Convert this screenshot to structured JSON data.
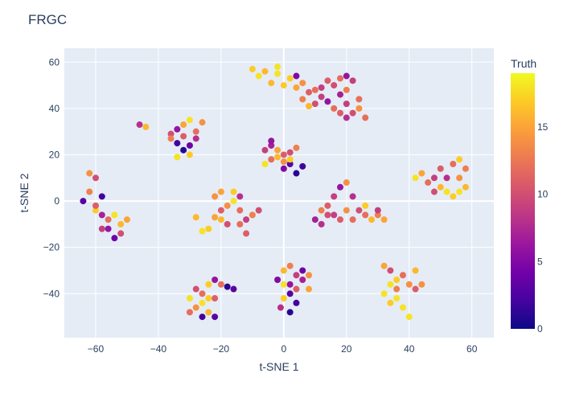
{
  "chart_data": {
    "type": "scatter",
    "title": "FRGC",
    "xlabel": "t-SNE 1",
    "ylabel": "t-SNE 2",
    "xlim": [
      -70,
      67
    ],
    "ylim": [
      -59,
      66
    ],
    "x_ticks": [
      -60,
      -40,
      -20,
      0,
      20,
      40,
      60
    ],
    "y_ticks": [
      -40,
      -20,
      0,
      20,
      40,
      60
    ],
    "x_tick_labels": [
      "−60",
      "−40",
      "−20",
      "0",
      "20",
      "40",
      "60"
    ],
    "y_tick_labels": [
      "−40",
      "−20",
      "0",
      "20",
      "40",
      "60"
    ],
    "grid": true,
    "background_color": "#e5ecf6",
    "colorbar": {
      "title": "Truth",
      "range": [
        0,
        19
      ],
      "ticks": [
        0,
        5,
        10,
        15
      ],
      "tick_labels": [
        "0",
        "5",
        "10",
        "15"
      ],
      "colorscale": [
        "#0d0887",
        "#46039f",
        "#7201a8",
        "#9c179e",
        "#bd3786",
        "#d8576b",
        "#ed7953",
        "#fb9f3a",
        "#fdca26",
        "#f0f921"
      ]
    },
    "clusters": [
      {
        "points": [
          [
            -10,
            57
          ],
          [
            -6,
            56
          ],
          [
            -2,
            55
          ],
          [
            2,
            53
          ],
          [
            6,
            51
          ],
          [
            10,
            48
          ],
          [
            -8,
            54
          ],
          [
            -4,
            51
          ],
          [
            0,
            50
          ],
          [
            4,
            49
          ],
          [
            8,
            47
          ],
          [
            12,
            45
          ],
          [
            14,
            43
          ],
          [
            10,
            42
          ],
          [
            6,
            44
          ],
          [
            16,
            40
          ],
          [
            18,
            38
          ],
          [
            20,
            36
          ],
          [
            22,
            38
          ],
          [
            24,
            40
          ],
          [
            26,
            36
          ],
          [
            20,
            42
          ],
          [
            18,
            46
          ],
          [
            16,
            50
          ],
          [
            18,
            53
          ],
          [
            20,
            54
          ],
          [
            22,
            52
          ],
          [
            20,
            48
          ],
          [
            24,
            44
          ],
          [
            14,
            52
          ],
          [
            12,
            49
          ],
          [
            8,
            41
          ],
          [
            -2,
            58
          ],
          [
            4,
            54
          ]
        ],
        "values": [
          17,
          16,
          18,
          17,
          14,
          12,
          18,
          16,
          17,
          15,
          11,
          9,
          6,
          10,
          13,
          12,
          11,
          8,
          10,
          14,
          12,
          9,
          7,
          10,
          12,
          6,
          9,
          13,
          12,
          11,
          9,
          16,
          18,
          5
        ]
      },
      {
        "points": [
          [
            -46,
            33
          ],
          [
            -44,
            32
          ],
          [
            -36,
            29
          ],
          [
            -34,
            31
          ],
          [
            -32,
            33
          ],
          [
            -30,
            35
          ],
          [
            -28,
            30
          ],
          [
            -26,
            34
          ],
          [
            -34,
            25
          ],
          [
            -32,
            22
          ],
          [
            -30,
            20
          ],
          [
            -36,
            27
          ],
          [
            -28,
            27
          ],
          [
            -32,
            28
          ],
          [
            -30,
            24
          ],
          [
            -34,
            19
          ]
        ],
        "values": [
          8,
          16,
          10,
          6,
          15,
          18,
          12,
          14,
          2,
          1,
          17,
          13,
          8,
          11,
          4,
          18
        ]
      },
      {
        "points": [
          [
            -6,
            22
          ],
          [
            -4,
            24
          ],
          [
            -2,
            19
          ],
          [
            0,
            17
          ],
          [
            2,
            16
          ],
          [
            -6,
            16
          ],
          [
            -4,
            18
          ],
          [
            2,
            21
          ],
          [
            4,
            23
          ],
          [
            -2,
            22
          ],
          [
            0,
            14
          ],
          [
            -4,
            26
          ],
          [
            6,
            15
          ],
          [
            4,
            12
          ],
          [
            0,
            20
          ],
          [
            2,
            18
          ]
        ],
        "values": [
          9,
          7,
          16,
          14,
          3,
          18,
          12,
          10,
          13,
          15,
          5,
          6,
          2,
          1,
          11,
          17
        ]
      },
      {
        "points": [
          [
            -60,
            10
          ],
          [
            -62,
            4
          ],
          [
            -64,
            0
          ],
          [
            -60,
            -4
          ],
          [
            -56,
            -8
          ],
          [
            -58,
            -12
          ],
          [
            -54,
            -16
          ],
          [
            -52,
            -10
          ],
          [
            -50,
            -8
          ],
          [
            -62,
            12
          ],
          [
            -58,
            2
          ],
          [
            -60,
            -2
          ],
          [
            -56,
            -12
          ],
          [
            -54,
            -6
          ],
          [
            -52,
            -14
          ],
          [
            -58,
            -6
          ]
        ],
        "values": [
          10,
          13,
          3,
          17,
          12,
          9,
          4,
          16,
          15,
          14,
          2,
          11,
          6,
          18,
          10,
          7
        ]
      },
      {
        "points": [
          [
            -26,
            -13
          ],
          [
            -24,
            -12
          ],
          [
            -22,
            -7
          ],
          [
            -20,
            -4
          ],
          [
            -18,
            -2
          ],
          [
            -16,
            0
          ],
          [
            -14,
            -4
          ],
          [
            -12,
            -8
          ],
          [
            -10,
            -6
          ],
          [
            -18,
            -10
          ],
          [
            -20,
            -8
          ],
          [
            -14,
            -10
          ],
          [
            -12,
            -14
          ],
          [
            -8,
            -4
          ],
          [
            -22,
            2
          ],
          [
            -20,
            4
          ],
          [
            -16,
            4
          ],
          [
            -14,
            2
          ],
          [
            -28,
            -7
          ]
        ],
        "values": [
          18,
          17,
          15,
          11,
          14,
          18,
          12,
          9,
          13,
          10,
          16,
          12,
          11,
          10,
          14,
          15,
          17,
          8,
          16
        ]
      },
      {
        "points": [
          [
            -28,
            -46
          ],
          [
            -26,
            -44
          ],
          [
            -24,
            -48
          ],
          [
            -22,
            -50
          ],
          [
            -26,
            -40
          ],
          [
            -24,
            -36
          ],
          [
            -22,
            -34
          ],
          [
            -20,
            -36
          ],
          [
            -18,
            -37
          ],
          [
            -30,
            -42
          ],
          [
            -28,
            -38
          ],
          [
            -24,
            -42
          ],
          [
            -26,
            -50
          ],
          [
            -30,
            -48
          ],
          [
            -22,
            -42
          ],
          [
            -16,
            -38
          ]
        ],
        "values": [
          14,
          18,
          16,
          3,
          12,
          17,
          6,
          12,
          1,
          18,
          10,
          17,
          2,
          12,
          11,
          3
        ]
      },
      {
        "points": [
          [
            0,
            -30
          ],
          [
            2,
            -28
          ],
          [
            4,
            -32
          ],
          [
            6,
            -34
          ],
          [
            8,
            -38
          ],
          [
            0,
            -36
          ],
          [
            2,
            -40
          ],
          [
            4,
            -44
          ],
          [
            2,
            -48
          ],
          [
            -2,
            -34
          ],
          [
            0,
            -42
          ],
          [
            4,
            -38
          ],
          [
            6,
            -30
          ],
          [
            8,
            -32
          ],
          [
            -1,
            -46
          ],
          [
            2,
            -36
          ]
        ],
        "values": [
          16,
          13,
          9,
          7,
          15,
          18,
          3,
          2,
          1,
          5,
          17,
          11,
          4,
          14,
          8,
          6
        ]
      },
      {
        "points": [
          [
            10,
            -8
          ],
          [
            12,
            -4
          ],
          [
            14,
            -2
          ],
          [
            16,
            2
          ],
          [
            18,
            6
          ],
          [
            20,
            8
          ],
          [
            22,
            2
          ],
          [
            24,
            -4
          ],
          [
            26,
            -6
          ],
          [
            28,
            -8
          ],
          [
            30,
            -6
          ],
          [
            16,
            -6
          ],
          [
            18,
            -8
          ],
          [
            20,
            -4
          ],
          [
            12,
            -10
          ],
          [
            14,
            -6
          ],
          [
            22,
            -8
          ],
          [
            26,
            -2
          ],
          [
            30,
            -4
          ],
          [
            32,
            -8
          ]
        ],
        "values": [
          7,
          13,
          11,
          9,
          6,
          14,
          8,
          10,
          12,
          16,
          13,
          9,
          11,
          14,
          8,
          10,
          12,
          17,
          9,
          15
        ]
      },
      {
        "points": [
          [
            32,
            -28
          ],
          [
            34,
            -30
          ],
          [
            36,
            -34
          ],
          [
            34,
            -36
          ],
          [
            32,
            -40
          ],
          [
            34,
            -44
          ],
          [
            36,
            -42
          ],
          [
            38,
            -46
          ],
          [
            40,
            -50
          ],
          [
            38,
            -32
          ],
          [
            40,
            -36
          ],
          [
            42,
            -30
          ],
          [
            44,
            -36
          ],
          [
            42,
            -38
          ],
          [
            36,
            -38
          ]
        ],
        "values": [
          15,
          10,
          17,
          18,
          18,
          17,
          18,
          18,
          18,
          12,
          14,
          16,
          14,
          11,
          13
        ]
      },
      {
        "points": [
          [
            42,
            10
          ],
          [
            44,
            12
          ],
          [
            46,
            8
          ],
          [
            48,
            4
          ],
          [
            50,
            6
          ],
          [
            52,
            4
          ],
          [
            54,
            2
          ],
          [
            56,
            4
          ],
          [
            58,
            14
          ],
          [
            56,
            18
          ],
          [
            54,
            16
          ],
          [
            50,
            14
          ],
          [
            48,
            10
          ],
          [
            52,
            10
          ],
          [
            56,
            10
          ],
          [
            58,
            6
          ]
        ],
        "values": [
          18,
          15,
          12,
          10,
          16,
          18,
          17,
          18,
          13,
          17,
          12,
          11,
          9,
          8,
          14,
          16
        ]
      }
    ]
  }
}
